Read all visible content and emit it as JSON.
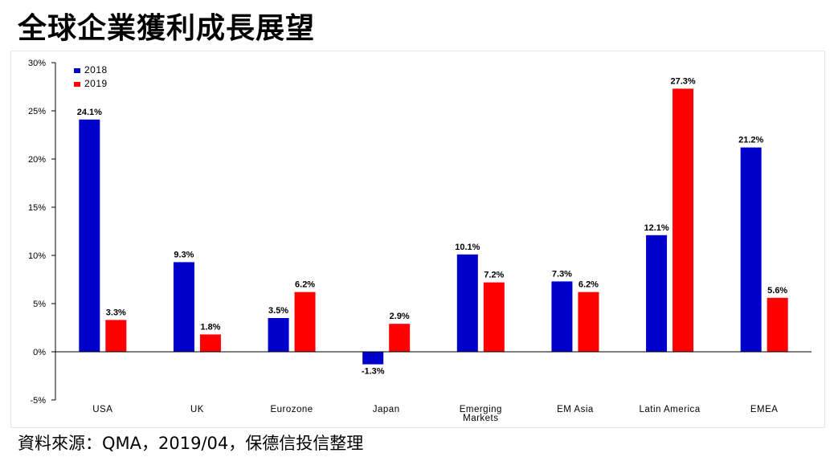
{
  "title": "全球企業獲利成長展望",
  "source": "資料來源：QMA，2019/04，保德信投信整理",
  "chart_data": {
    "type": "bar",
    "categories": [
      "USA",
      "UK",
      "Eurozone",
      "Japan",
      "Emerging Markets",
      "EM Asia",
      "Latin America",
      "EMEA"
    ],
    "series": [
      {
        "name": "2018",
        "color": "#0000cc",
        "values": [
          24.1,
          9.3,
          3.5,
          -1.3,
          10.1,
          7.3,
          12.1,
          21.2
        ]
      },
      {
        "name": "2019",
        "color": "#ff0000",
        "values": [
          3.3,
          1.8,
          6.2,
          2.9,
          7.2,
          6.2,
          27.3,
          5.6
        ]
      }
    ],
    "value_labels": [
      [
        "24.1%",
        "9.3%",
        "3.5%",
        "-1.3%",
        "10.1%",
        "7.3%",
        "12.1%",
        "21.2%"
      ],
      [
        "3.3%",
        "1.8%",
        "6.2%",
        "2.9%",
        "7.2%",
        "6.2%",
        "27.3%",
        "5.6%"
      ]
    ],
    "ylim": [
      -5,
      30
    ],
    "yticks": [
      -5,
      0,
      5,
      10,
      15,
      20,
      25,
      30
    ],
    "ytick_labels": [
      "-5%",
      "0%",
      "5%",
      "10%",
      "15%",
      "20%",
      "25%",
      "30%"
    ],
    "legend_position": "top-left",
    "grid": false,
    "xlabel": "",
    "ylabel": ""
  }
}
